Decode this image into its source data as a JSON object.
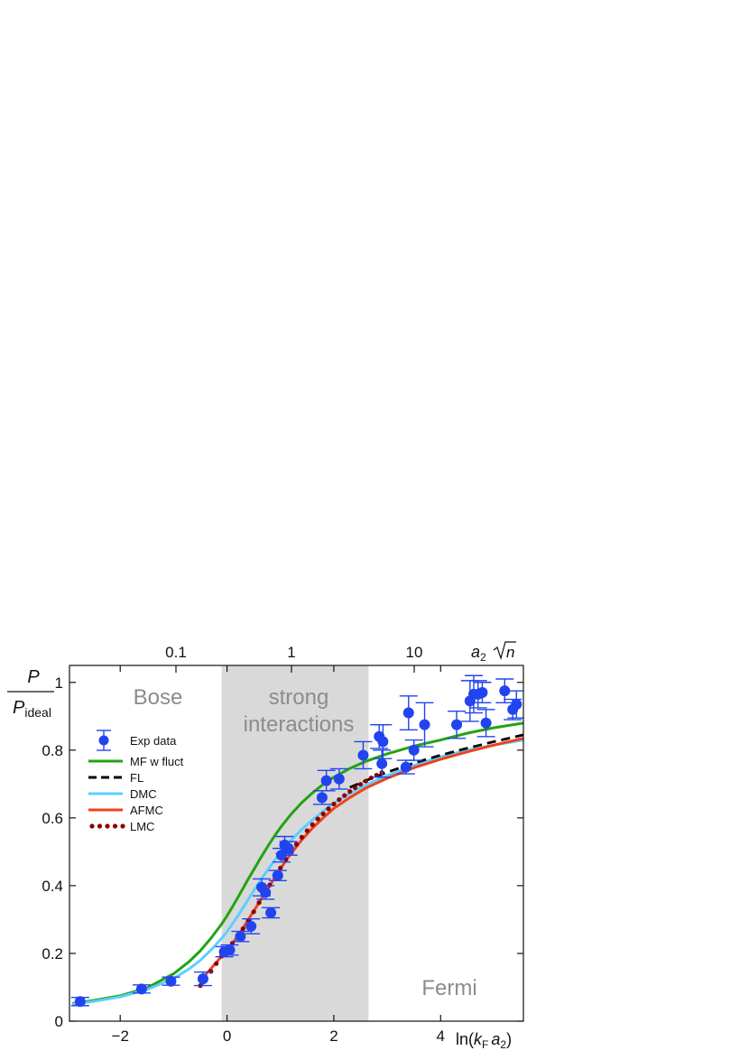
{
  "chart_data": {
    "type": "line",
    "xlabel": {
      "pre": "ln(",
      "k": "k",
      "F": "F",
      "a": "a",
      "two": "2",
      "post": ")"
    },
    "ylabel": {
      "num": "P",
      "den": "P",
      "den_sub": "ideal"
    },
    "top_label": {
      "a": "a",
      "two": "2"
    },
    "xlim": [
      -2.95,
      5.55
    ],
    "ylim": [
      0,
      1.05
    ],
    "x_ticks": [
      -2,
      0,
      2,
      4
    ],
    "x_tick_labels": [
      "−2",
      "0",
      "2",
      "4"
    ],
    "y_ticks": [
      0,
      0.2,
      0.4,
      0.6,
      0.8,
      1
    ],
    "y_tick_labels": [
      "0",
      "0.2",
      "0.4",
      "0.6",
      "0.8",
      "1"
    ],
    "top_ticks": [
      0.1,
      1,
      10
    ],
    "top_tick_labels": [
      "0.1",
      "1",
      "10"
    ],
    "shaded_region": {
      "x": [
        -0.1,
        2.65
      ],
      "label": [
        "strong",
        "interactions"
      ]
    },
    "region_labels": {
      "bose": "Bose",
      "fermi": "Fermi"
    },
    "legend_position": "upper-left",
    "colors": {
      "exp": "#2244ee",
      "mf": "#22a312",
      "fl": "#000000",
      "dmc": "#5ccfff",
      "afmc": "#f0401c",
      "lmc": "#8b0000",
      "shade": "#d9d9d9"
    },
    "series": [
      {
        "name": "MF w fluct",
        "key": "mf",
        "style": "solid",
        "x": [
          -2.9,
          -2.5,
          -2.0,
          -1.5,
          -1.0,
          -0.7,
          -0.5,
          -0.3,
          -0.1,
          0.0,
          0.1,
          0.2,
          0.3,
          0.4,
          0.5,
          0.6,
          0.7,
          0.8,
          0.9,
          1.0,
          1.2,
          1.4,
          1.6,
          1.8,
          2.0,
          2.3,
          2.6,
          3.0,
          3.5,
          4.0,
          4.5,
          5.0,
          5.55
        ],
        "y": [
          0.052,
          0.061,
          0.075,
          0.098,
          0.14,
          0.177,
          0.208,
          0.245,
          0.287,
          0.311,
          0.337,
          0.364,
          0.392,
          0.42,
          0.447,
          0.474,
          0.5,
          0.525,
          0.549,
          0.571,
          0.611,
          0.645,
          0.674,
          0.699,
          0.72,
          0.746,
          0.767,
          0.789,
          0.812,
          0.83,
          0.85,
          0.866,
          0.88
        ]
      },
      {
        "name": "FL",
        "key": "fl",
        "style": "dashed",
        "x": [
          2.3,
          2.6,
          3.0,
          3.5,
          4.0,
          4.5,
          5.0,
          5.55
        ],
        "y": [
          0.69,
          0.71,
          0.735,
          0.762,
          0.785,
          0.806,
          0.825,
          0.845
        ]
      },
      {
        "name": "DMC",
        "key": "dmc",
        "style": "solid",
        "x": [
          -2.9,
          -2.5,
          -2.0,
          -1.5,
          -1.0,
          -0.7,
          -0.5,
          -0.3,
          -0.1,
          0.0,
          0.2,
          0.4,
          0.6,
          0.8,
          1.0,
          1.2,
          1.4,
          1.6,
          1.8,
          2.0,
          2.3,
          2.6,
          3.0,
          3.5,
          4.0,
          4.5,
          5.0,
          5.55
        ],
        "y": [
          0.05,
          0.058,
          0.072,
          0.093,
          0.126,
          0.155,
          0.18,
          0.21,
          0.245,
          0.264,
          0.31,
          0.36,
          0.41,
          0.455,
          0.497,
          0.534,
          0.566,
          0.594,
          0.62,
          0.643,
          0.672,
          0.697,
          0.725,
          0.755,
          0.78,
          0.8,
          0.815,
          0.83
        ]
      },
      {
        "name": "AFMC",
        "key": "afmc",
        "style": "solid",
        "x": [
          -0.5,
          -0.3,
          -0.1,
          0.0,
          0.2,
          0.4,
          0.6,
          0.8,
          1.0,
          1.2,
          1.4,
          1.6,
          1.8,
          2.0,
          2.3,
          2.6,
          3.0,
          3.5,
          4.0,
          4.5,
          5.0,
          5.55
        ],
        "y": [
          0.12,
          0.155,
          0.192,
          0.21,
          0.25,
          0.3,
          0.35,
          0.4,
          0.45,
          0.495,
          0.535,
          0.57,
          0.6,
          0.628,
          0.66,
          0.688,
          0.717,
          0.748,
          0.773,
          0.795,
          0.815,
          0.835
        ]
      },
      {
        "name": "LMC",
        "key": "lmc",
        "style": "dotted",
        "x": [
          -0.5,
          -0.4,
          -0.3,
          -0.2,
          -0.1,
          0.0,
          0.1,
          0.2,
          0.3,
          0.4,
          0.5,
          0.6,
          0.7,
          0.8,
          0.9,
          1.0,
          1.1,
          1.2,
          1.3,
          1.4,
          1.5,
          1.6,
          1.7,
          1.8,
          1.9,
          2.0,
          2.1,
          2.2,
          2.3,
          2.4,
          2.5,
          2.6,
          2.7,
          2.8,
          2.9
        ],
        "y": [
          0.105,
          0.125,
          0.147,
          0.17,
          0.192,
          0.212,
          0.23,
          0.25,
          0.273,
          0.298,
          0.323,
          0.35,
          0.376,
          0.402,
          0.428,
          0.452,
          0.477,
          0.5,
          0.522,
          0.543,
          0.562,
          0.58,
          0.597,
          0.612,
          0.627,
          0.641,
          0.654,
          0.666,
          0.678,
          0.689,
          0.699,
          0.709,
          0.718,
          0.726,
          0.734
        ]
      }
    ],
    "exp_data": {
      "name": "Exp data",
      "key": "exp",
      "points": [
        {
          "x": -2.75,
          "y": 0.058,
          "err": 0.012
        },
        {
          "x": -1.6,
          "y": 0.095,
          "err": 0.012
        },
        {
          "x": -1.05,
          "y": 0.118,
          "err": 0.012
        },
        {
          "x": -0.45,
          "y": 0.125,
          "err": 0.02
        },
        {
          "x": -0.05,
          "y": 0.205,
          "err": 0.015
        },
        {
          "x": 0.05,
          "y": 0.21,
          "err": 0.015
        },
        {
          "x": 0.25,
          "y": 0.25,
          "err": 0.015
        },
        {
          "x": 0.45,
          "y": 0.28,
          "err": 0.022
        },
        {
          "x": 0.65,
          "y": 0.395,
          "err": 0.025
        },
        {
          "x": 0.72,
          "y": 0.38,
          "err": 0.02
        },
        {
          "x": 0.82,
          "y": 0.32,
          "err": 0.015
        },
        {
          "x": 0.95,
          "y": 0.43,
          "err": 0.015
        },
        {
          "x": 1.02,
          "y": 0.49,
          "err": 0.02
        },
        {
          "x": 1.08,
          "y": 0.52,
          "err": 0.025
        },
        {
          "x": 1.15,
          "y": 0.51,
          "err": 0.02
        },
        {
          "x": 1.78,
          "y": 0.66,
          "err": 0.02
        },
        {
          "x": 1.86,
          "y": 0.71,
          "err": 0.03
        },
        {
          "x": 2.1,
          "y": 0.715,
          "err": 0.03
        },
        {
          "x": 2.55,
          "y": 0.785,
          "err": 0.04
        },
        {
          "x": 2.85,
          "y": 0.84,
          "err": 0.035
        },
        {
          "x": 2.9,
          "y": 0.76,
          "err": 0.04
        },
        {
          "x": 2.92,
          "y": 0.825,
          "err": 0.05
        },
        {
          "x": 3.35,
          "y": 0.75,
          "err": 0.02
        },
        {
          "x": 3.4,
          "y": 0.91,
          "err": 0.05
        },
        {
          "x": 3.5,
          "y": 0.8,
          "err": 0.03
        },
        {
          "x": 3.7,
          "y": 0.875,
          "err": 0.065
        },
        {
          "x": 4.3,
          "y": 0.875,
          "err": 0.04
        },
        {
          "x": 4.55,
          "y": 0.945,
          "err": 0.06
        },
        {
          "x": 4.62,
          "y": 0.965,
          "err": 0.055
        },
        {
          "x": 4.7,
          "y": 0.965,
          "err": 0.04
        },
        {
          "x": 4.78,
          "y": 0.97,
          "err": 0.03
        },
        {
          "x": 4.85,
          "y": 0.88,
          "err": 0.04
        },
        {
          "x": 5.2,
          "y": 0.975,
          "err": 0.035
        },
        {
          "x": 5.35,
          "y": 0.92,
          "err": 0.03
        },
        {
          "x": 5.42,
          "y": 0.935,
          "err": 0.04
        }
      ]
    }
  }
}
